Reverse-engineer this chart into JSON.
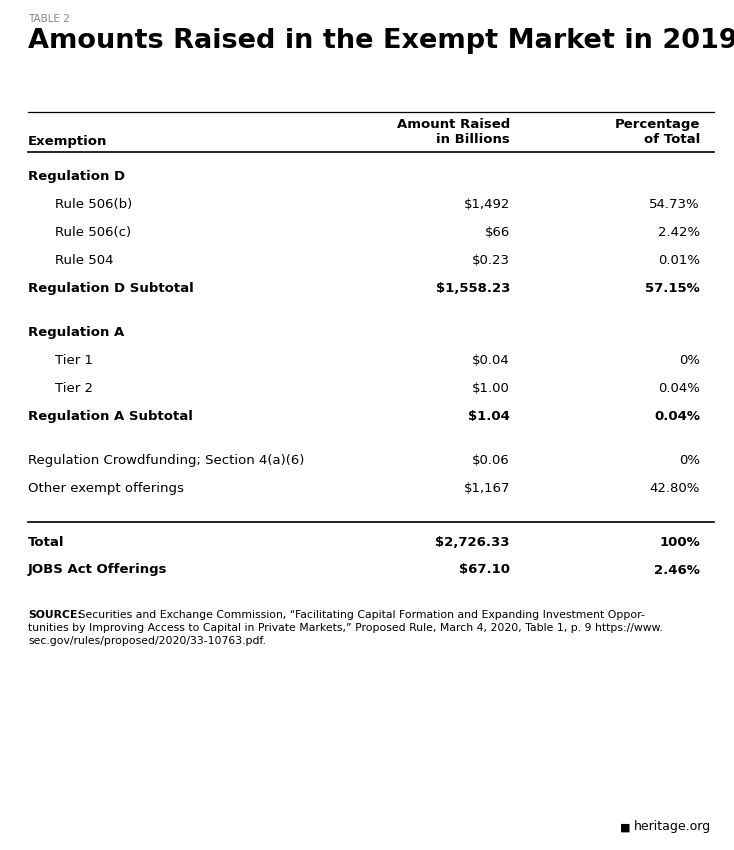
{
  "table_label": "TABLE 2",
  "title": "Amounts Raised in the Exempt Market in 2019",
  "col_headers": [
    "Exemption",
    "Amount Raised\nin Billions",
    "Percentage\nof Total"
  ],
  "rows": [
    {
      "label": "Regulation D",
      "amount": "",
      "pct": "",
      "bold": true,
      "indent": false,
      "spacer": false
    },
    {
      "label": "Rule 506(b)",
      "amount": "$1,492",
      "pct": "54.73%",
      "bold": false,
      "indent": true,
      "spacer": false
    },
    {
      "label": "Rule 506(c)",
      "amount": "$66",
      "pct": "2.42%",
      "bold": false,
      "indent": true,
      "spacer": false
    },
    {
      "label": "Rule 504",
      "amount": "$0.23",
      "pct": "0.01%",
      "bold": false,
      "indent": true,
      "spacer": false
    },
    {
      "label": "Regulation D Subtotal",
      "amount": "$1,558.23",
      "pct": "57.15%",
      "bold": true,
      "indent": false,
      "spacer": false
    },
    {
      "label": "",
      "amount": "",
      "pct": "",
      "bold": false,
      "indent": false,
      "spacer": true
    },
    {
      "label": "Regulation A",
      "amount": "",
      "pct": "",
      "bold": true,
      "indent": false,
      "spacer": false
    },
    {
      "label": "Tier 1",
      "amount": "$0.04",
      "pct": "0%",
      "bold": false,
      "indent": true,
      "spacer": false
    },
    {
      "label": "Tier 2",
      "amount": "$1.00",
      "pct": "0.04%",
      "bold": false,
      "indent": true,
      "spacer": false
    },
    {
      "label": "Regulation A Subtotal",
      "amount": "$1.04",
      "pct": "0.04%",
      "bold": true,
      "indent": false,
      "spacer": false
    },
    {
      "label": "",
      "amount": "",
      "pct": "",
      "bold": false,
      "indent": false,
      "spacer": true
    },
    {
      "label": "Regulation Crowdfunding; Section 4(a)(6)",
      "amount": "$0.06",
      "pct": "0%",
      "bold": false,
      "indent": false,
      "spacer": false
    },
    {
      "label": "Other exempt offerings",
      "amount": "$1,167",
      "pct": "42.80%",
      "bold": false,
      "indent": false,
      "spacer": false
    },
    {
      "label": "",
      "amount": "",
      "pct": "",
      "bold": false,
      "indent": false,
      "spacer": true
    }
  ],
  "footer_rows": [
    {
      "label": "Total",
      "amount": "$2,726.33",
      "pct": "100%",
      "bold": true
    },
    {
      "label": "JOBS Act Offerings",
      "amount": "$67.10",
      "pct": "2.46%",
      "bold": true
    }
  ],
  "source_line1_bold": "SOURCE:",
  "source_line1_rest": " Securities and Exchange Commission, “Facilitating Capital Formation and Expanding Investment Oppor-",
  "source_line2": "tunities by Improving Access to Capital in Private Markets,” Proposed Rule, March 4, 2020, Table 1, p. 9 https://www.",
  "source_line3": "sec.gov/rules/proposed/2020/33-10763.pdf.",
  "heritage_text": "heritage.org",
  "bg_color": "#ffffff",
  "text_color": "#000000",
  "table_label_color": "#888888"
}
